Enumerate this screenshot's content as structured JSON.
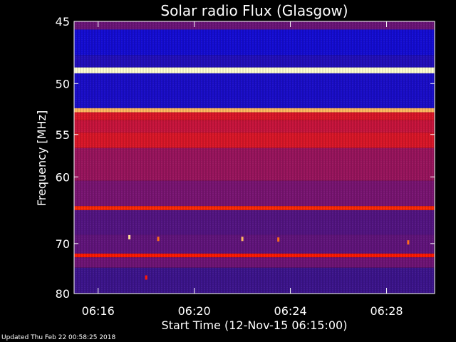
{
  "chart_data": {
    "type": "heatmap",
    "title": "Solar radio Flux (Glasgow)",
    "xlabel": "Start Time (12-Nov-15 06:15:00)",
    "ylabel": "Frequency [MHz]",
    "x_unit": "minutes after 06:15:00",
    "xlim": [
      0,
      15
    ],
    "ylim": [
      45,
      80
    ],
    "y_scale": "reciprocal (1/frequency)",
    "x_ticks": [
      {
        "minute": 1,
        "label": "06:16"
      },
      {
        "minute": 5,
        "label": "06:20"
      },
      {
        "minute": 9,
        "label": "06:24"
      },
      {
        "minute": 13,
        "label": "06:28"
      }
    ],
    "y_ticks": [
      {
        "value": 45,
        "label": "45"
      },
      {
        "value": 50,
        "label": "50"
      },
      {
        "value": 55,
        "label": "55"
      },
      {
        "value": 60,
        "label": "60"
      },
      {
        "value": 70,
        "label": "70"
      },
      {
        "value": 80,
        "label": "80"
      }
    ],
    "colors": {
      "background": "#000000",
      "axes": "#ffffff",
      "low": "#2a1a8a",
      "mid": "#c81a50",
      "high": "#ff2000",
      "peak": "#ffffd0"
    },
    "frequency_bands": [
      {
        "from": 45.0,
        "to": 45.6,
        "level": 0.35
      },
      {
        "from": 45.6,
        "to": 47.6,
        "level": 0.05
      },
      {
        "from": 47.6,
        "to": 48.6,
        "level": 0.12
      },
      {
        "from": 48.6,
        "to": 49.1,
        "level": 1.0
      },
      {
        "from": 49.1,
        "to": 52.3,
        "level": 0.08
      },
      {
        "from": 52.3,
        "to": 52.7,
        "level": 0.9
      },
      {
        "from": 52.7,
        "to": 53.5,
        "level": 0.6
      },
      {
        "from": 53.5,
        "to": 54.8,
        "level": 0.55
      },
      {
        "from": 54.8,
        "to": 56.5,
        "level": 0.6
      },
      {
        "from": 56.5,
        "to": 60.5,
        "level": 0.45
      },
      {
        "from": 60.5,
        "to": 64.0,
        "level": 0.38
      },
      {
        "from": 64.0,
        "to": 64.6,
        "level": 0.72
      },
      {
        "from": 64.6,
        "to": 68.5,
        "level": 0.3
      },
      {
        "from": 68.5,
        "to": 71.8,
        "level": 0.33
      },
      {
        "from": 71.8,
        "to": 72.5,
        "level": 0.7
      },
      {
        "from": 72.5,
        "to": 74.5,
        "level": 0.36
      },
      {
        "from": 74.5,
        "to": 80.0,
        "level": 0.25
      }
    ],
    "bursts": [
      {
        "minute": 2.3,
        "freq": 68.9,
        "level": 0.95
      },
      {
        "minute": 3.5,
        "freq": 69.2,
        "level": 0.8
      },
      {
        "minute": 7.0,
        "freq": 69.2,
        "level": 0.9
      },
      {
        "minute": 8.5,
        "freq": 69.3,
        "level": 0.8
      },
      {
        "minute": 13.9,
        "freq": 69.8,
        "level": 0.8
      },
      {
        "minute": 3.0,
        "freq": 76.5,
        "level": 0.7
      }
    ]
  },
  "footer": {
    "updated": "Updated Thu Feb 22 00:58:25 2018"
  }
}
